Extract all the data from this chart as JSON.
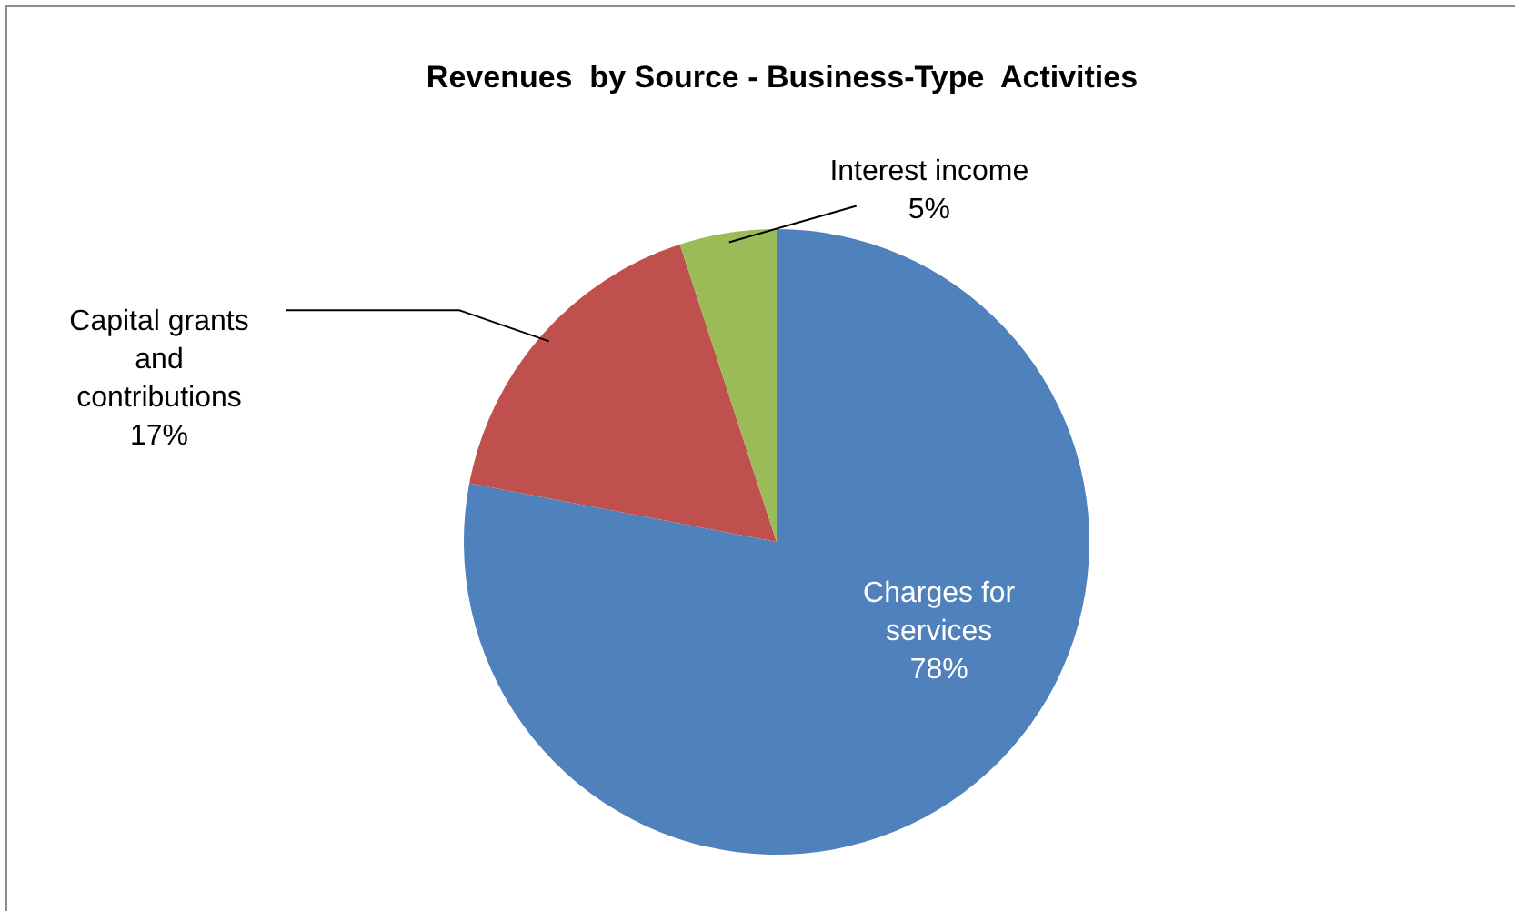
{
  "chart_data": {
    "type": "pie",
    "title": "Revenues  by Source - Business-Type  Activities",
    "categories": [
      "Charges for services",
      "Capital grants and contributions",
      "Interest income"
    ],
    "values": [
      78,
      17,
      5
    ],
    "colors": [
      "#4f81bd",
      "#c0504d",
      "#9bbb59"
    ],
    "value_labels": [
      "78%",
      "17%",
      "5%"
    ]
  }
}
